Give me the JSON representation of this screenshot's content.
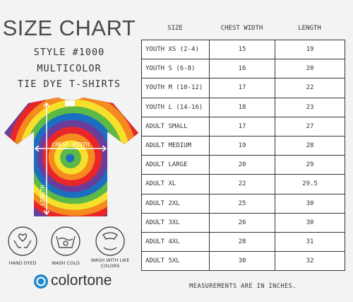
{
  "header": {
    "title": "SIZE CHART",
    "style": "STYLE #1000",
    "lines": [
      "MULTICOLOR",
      "TIE DYE T-SHIRTS"
    ]
  },
  "shirt": {
    "chest_label": "CHEST WIDTH",
    "length_label": "LENGTH"
  },
  "care": [
    "HAND DYED",
    "WASH COLD",
    "WASH WITH LIKE COLORS"
  ],
  "brand": "colortone",
  "table": {
    "columns": [
      "SIZE",
      "CHEST WIDTH",
      "LENGTH"
    ],
    "rows": [
      [
        "YOUTH XS (2-4)",
        15,
        19
      ],
      [
        "YOUTH S (6-8)",
        16,
        20
      ],
      [
        "YOUTH M (10-12)",
        17,
        22
      ],
      [
        "YOUTH L (14-16)",
        18,
        23
      ],
      [
        "ADULT SMALL",
        17,
        27
      ],
      [
        "ADULT MEDIUM",
        19,
        28
      ],
      [
        "ADULT LARGE",
        20,
        29
      ],
      [
        "ADULT XL",
        22,
        29.5
      ],
      [
        "ADULT 2XL",
        25,
        30
      ],
      [
        "ADULT 3XL",
        26,
        30
      ],
      [
        "ADULT 4XL",
        28,
        31
      ],
      [
        "ADULT 5XL",
        30,
        32
      ]
    ]
  },
  "footnote": "MEASUREMENTS ARE IN INCHES."
}
